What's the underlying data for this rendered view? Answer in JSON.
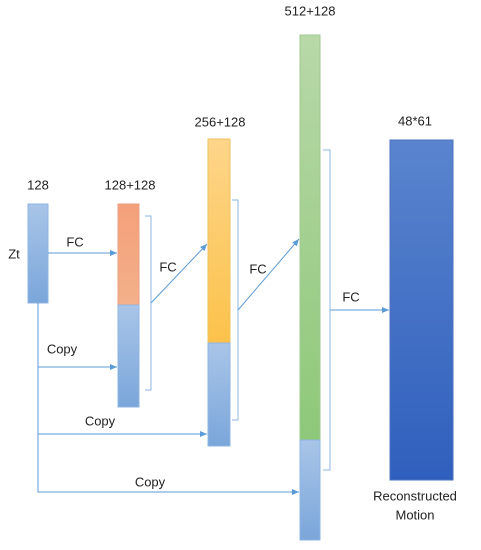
{
  "nodes": [
    {
      "id": "zt",
      "label": "Zt"
    },
    {
      "id": "input",
      "label": "128"
    },
    {
      "id": "layer1",
      "label": "128+128"
    },
    {
      "id": "layer2",
      "label": "256+128"
    },
    {
      "id": "layer3",
      "label": "512+128"
    },
    {
      "id": "output",
      "label": "48*61",
      "caption": [
        "Reconstructed",
        "Motion"
      ]
    }
  ],
  "edges": [
    {
      "label": "FC"
    },
    {
      "label": "Copy"
    },
    {
      "label": "FC"
    },
    {
      "label": "Copy"
    },
    {
      "label": "FC"
    },
    {
      "label": "Copy"
    },
    {
      "label": "FC"
    }
  ]
}
